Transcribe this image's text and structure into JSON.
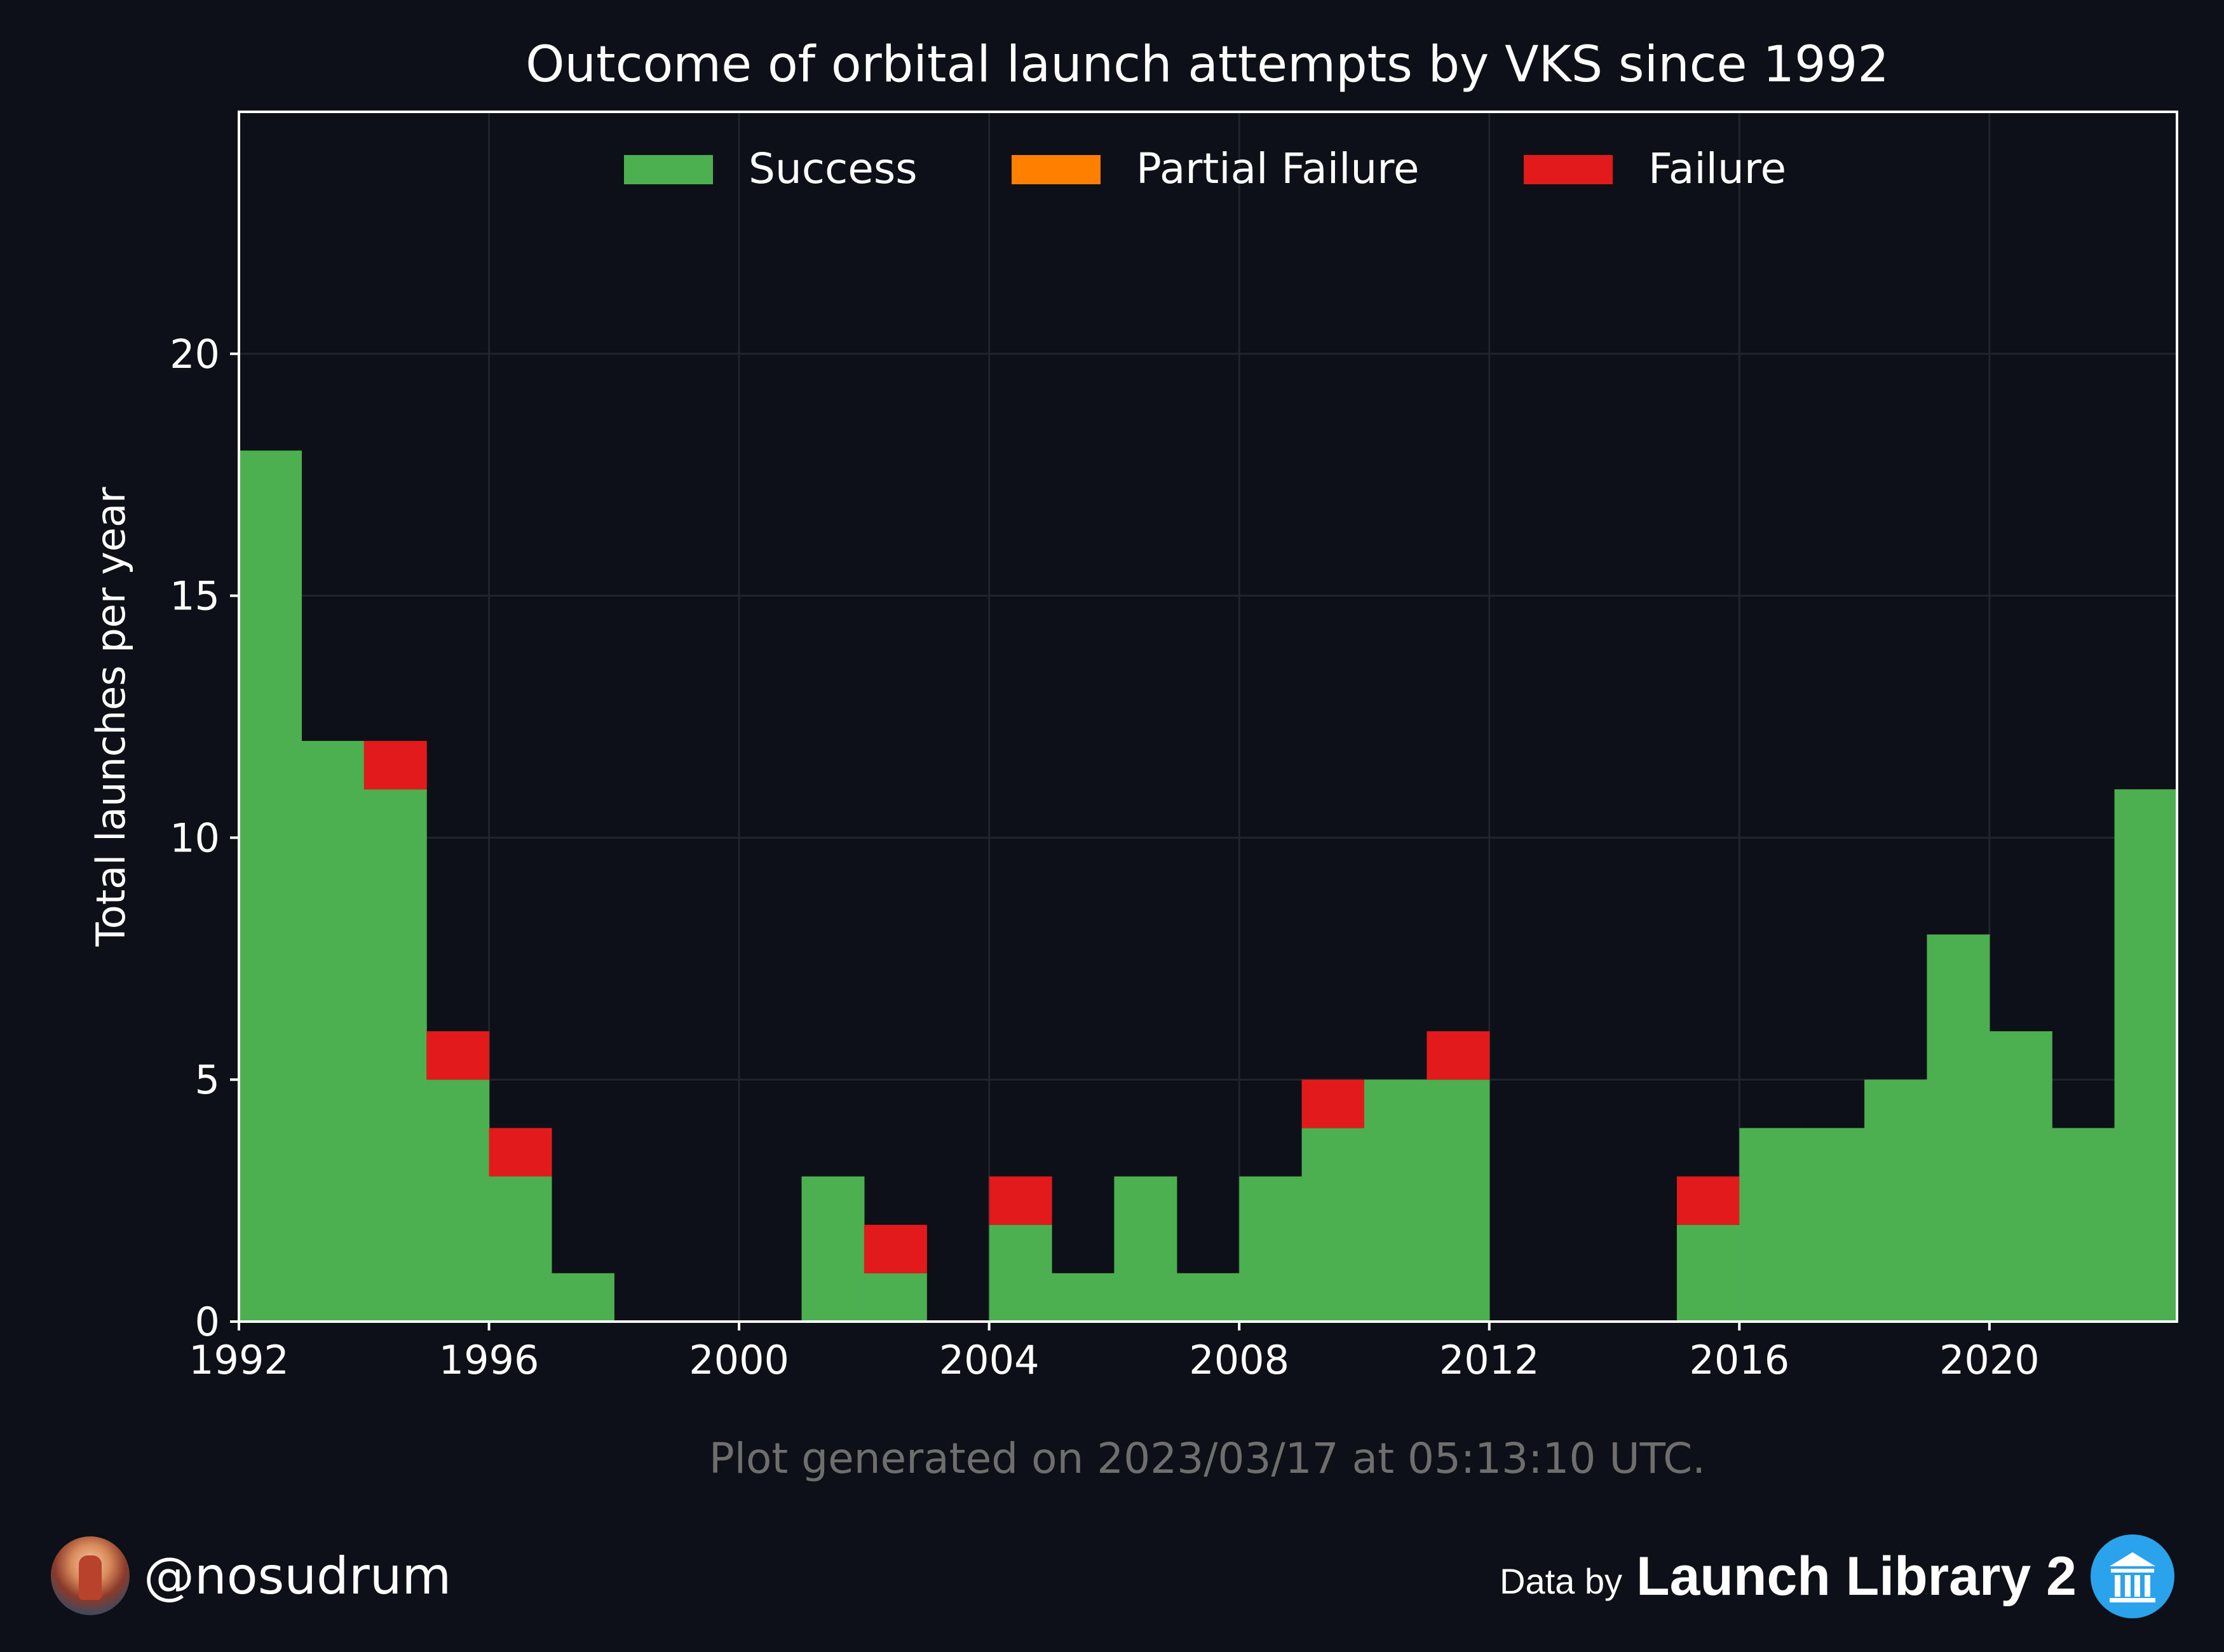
{
  "chart_data": {
    "type": "bar",
    "stacked": true,
    "title": "Outcome of orbital launch attempts by VKS since 1992",
    "xlabel": "",
    "ylabel": "Total launches per year",
    "x_tick_labels": [
      "1992",
      "1996",
      "2000",
      "2004",
      "2008",
      "2012",
      "2016",
      "2020"
    ],
    "y_tick_labels": [
      "0",
      "5",
      "10",
      "15",
      "20"
    ],
    "xlim": [
      1992,
      2023
    ],
    "ylim": [
      0,
      25
    ],
    "grid": true,
    "legend_position": "top-center",
    "categories": [
      1992,
      1993,
      1994,
      1995,
      1996,
      1997,
      1998,
      1999,
      2000,
      2001,
      2002,
      2003,
      2004,
      2005,
      2006,
      2007,
      2008,
      2009,
      2010,
      2011,
      2012,
      2013,
      2014,
      2015,
      2016,
      2017,
      2018,
      2019,
      2020,
      2021,
      2022
    ],
    "series": [
      {
        "name": "Success",
        "color": "#4caf50",
        "values": [
          18,
          12,
          11,
          5,
          3,
          1,
          0,
          0,
          0,
          3,
          1,
          0,
          2,
          1,
          3,
          1,
          3,
          4,
          5,
          5,
          0,
          0,
          0,
          2,
          4,
          4,
          5,
          8,
          6,
          4,
          11
        ]
      },
      {
        "name": "Partial Failure",
        "color": "#ff7f00",
        "values": [
          0,
          0,
          0,
          0,
          0,
          0,
          0,
          0,
          0,
          0,
          0,
          0,
          0,
          0,
          0,
          0,
          0,
          0,
          0,
          0,
          0,
          0,
          0,
          0,
          0,
          0,
          0,
          0,
          0,
          0,
          0
        ]
      },
      {
        "name": "Failure",
        "color": "#e31a1c",
        "values": [
          0,
          0,
          1,
          1,
          1,
          0,
          0,
          0,
          0,
          0,
          1,
          0,
          1,
          0,
          0,
          0,
          0,
          1,
          0,
          1,
          0,
          0,
          0,
          1,
          0,
          0,
          0,
          0,
          0,
          0,
          0
        ]
      }
    ]
  },
  "footnote": "Plot generated on 2023/03/17 at 05:13:10 UTC.",
  "footer": {
    "handle": "@nosudrum",
    "data_by": "Data by",
    "source_name": "Launch Library 2"
  },
  "colors": {
    "background": "#0d1017",
    "grid": "#1f242d",
    "axis": "#ffffff",
    "footnote": "#6e6e6e"
  }
}
